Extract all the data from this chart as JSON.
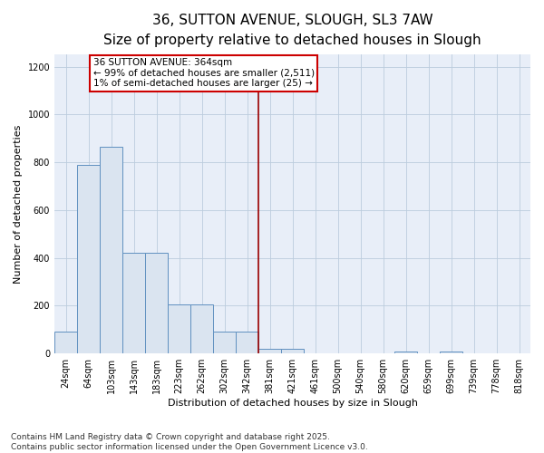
{
  "title_line1": "36, SUTTON AVENUE, SLOUGH, SL3 7AW",
  "title_line2": "Size of property relative to detached houses in Slough",
  "xlabel": "Distribution of detached houses by size in Slough",
  "ylabel": "Number of detached properties",
  "categories": [
    "24sqm",
    "64sqm",
    "103sqm",
    "143sqm",
    "183sqm",
    "223sqm",
    "262sqm",
    "302sqm",
    "342sqm",
    "381sqm",
    "421sqm",
    "461sqm",
    "500sqm",
    "540sqm",
    "580sqm",
    "620sqm",
    "659sqm",
    "699sqm",
    "739sqm",
    "778sqm",
    "818sqm"
  ],
  "values": [
    90,
    790,
    865,
    420,
    420,
    205,
    205,
    90,
    90,
    20,
    20,
    0,
    0,
    0,
    0,
    10,
    0,
    10,
    0,
    0,
    0
  ],
  "bar_color": "#dae4f0",
  "bar_edge_color": "#6090c0",
  "vline_x_index": 8,
  "vline_color": "#990000",
  "annotation_text": "36 SUTTON AVENUE: 364sqm\n← 99% of detached houses are smaller (2,511)\n1% of semi-detached houses are larger (25) →",
  "annotation_box_color": "#cc0000",
  "ylim": [
    0,
    1250
  ],
  "yticks": [
    0,
    200,
    400,
    600,
    800,
    1000,
    1200
  ],
  "grid_color": "#bbccdd",
  "bg_color": "#e8eef8",
  "footer_line1": "Contains HM Land Registry data © Crown copyright and database right 2025.",
  "footer_line2": "Contains public sector information licensed under the Open Government Licence v3.0.",
  "title_fontsize": 11,
  "subtitle_fontsize": 9,
  "axis_label_fontsize": 8,
  "tick_fontsize": 7,
  "annotation_fontsize": 7.5,
  "footer_fontsize": 6.5
}
